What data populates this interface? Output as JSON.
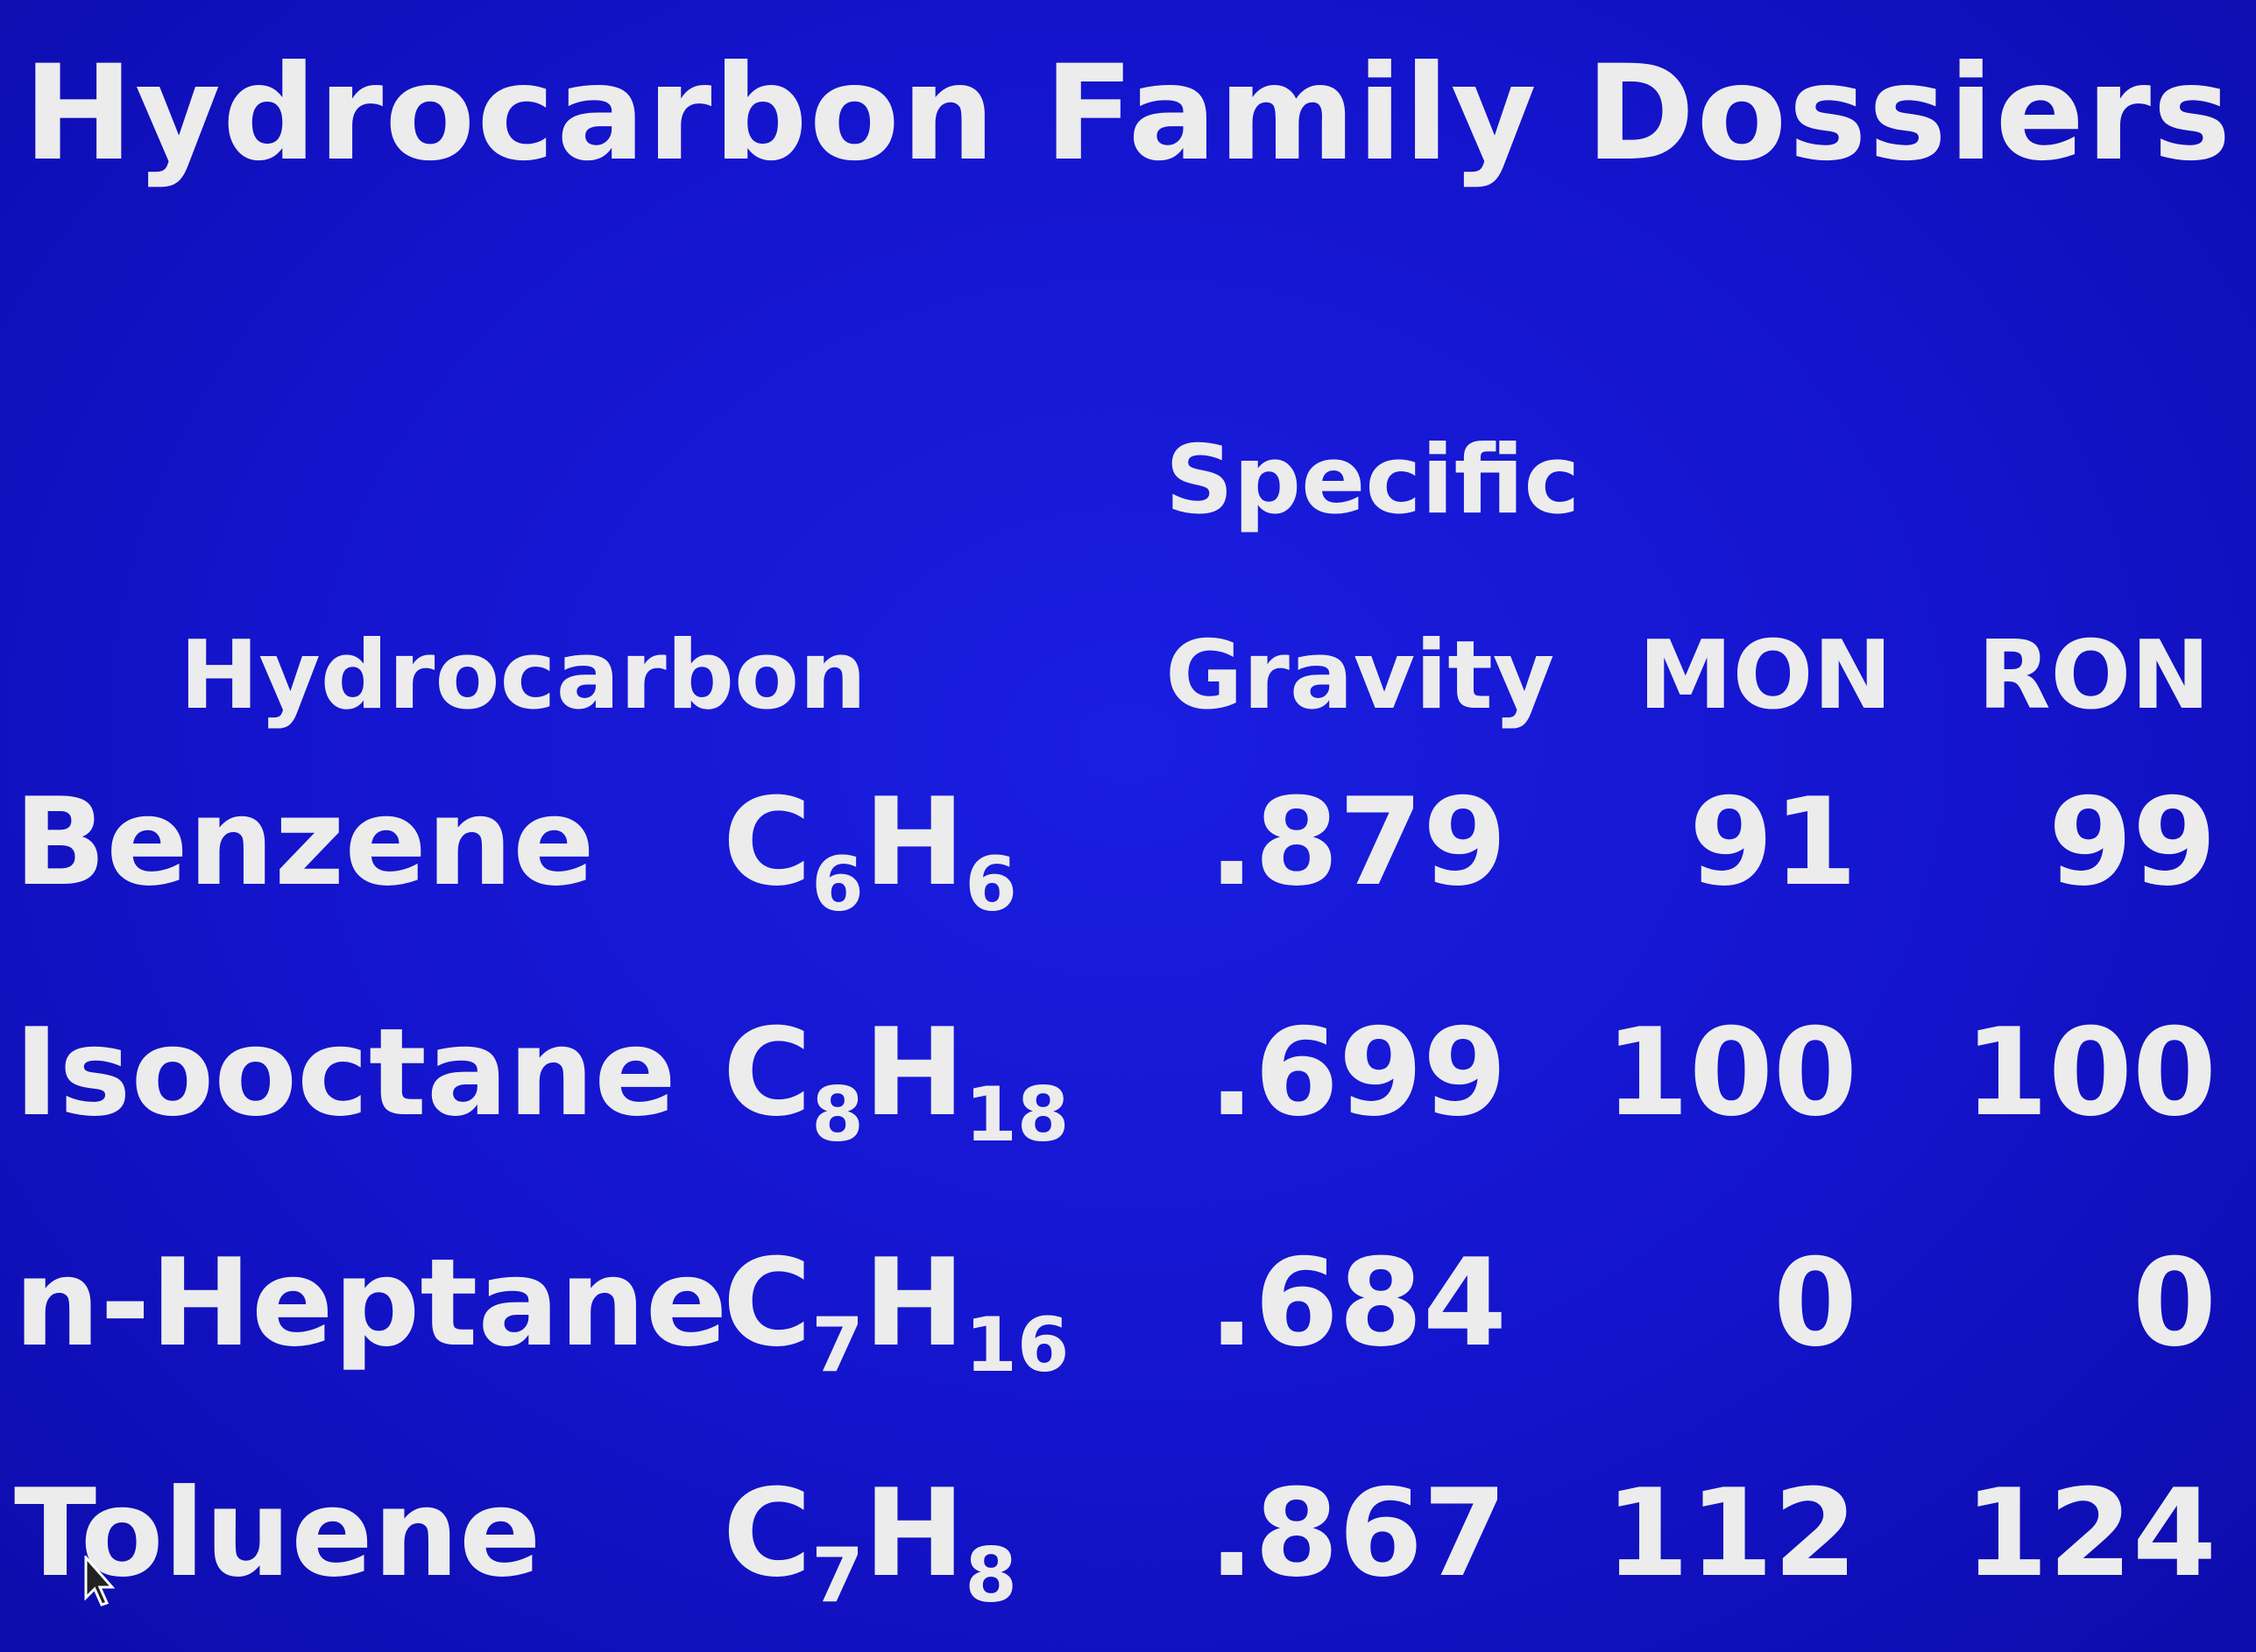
{
  "title": "Hydrocarbon Family Dossiers",
  "headers": {
    "hydrocarbon": "Hydrocarbon",
    "specific": "Specific",
    "gravity": "Gravity",
    "mon": "MON",
    "ron": "RON"
  },
  "rows": [
    {
      "name": "Benzene",
      "formula_c": "C",
      "c_count": "6",
      "formula_h": "H",
      "h_count": "6",
      "specific_gravity": ".879",
      "mon": "91",
      "ron": "99"
    },
    {
      "name": "Isooctane",
      "formula_c": "C",
      "c_count": "8",
      "formula_h": "H",
      "h_count": "18",
      "specific_gravity": ".699",
      "mon": "100",
      "ron": "100"
    },
    {
      "name": "n-Heptane",
      "formula_c": "C",
      "c_count": "7",
      "formula_h": "H",
      "h_count": "16",
      "specific_gravity": ".684",
      "mon": "0",
      "ron": "0"
    },
    {
      "name": "Toluene",
      "formula_c": "C",
      "c_count": "7",
      "formula_h": "H",
      "h_count": "8",
      "specific_gravity": ".867",
      "mon": "112",
      "ron": "124"
    }
  ],
  "colors": {
    "background": "#1414cc",
    "text": "#ececec"
  },
  "cursor_icon": "mouse-pointer-icon"
}
